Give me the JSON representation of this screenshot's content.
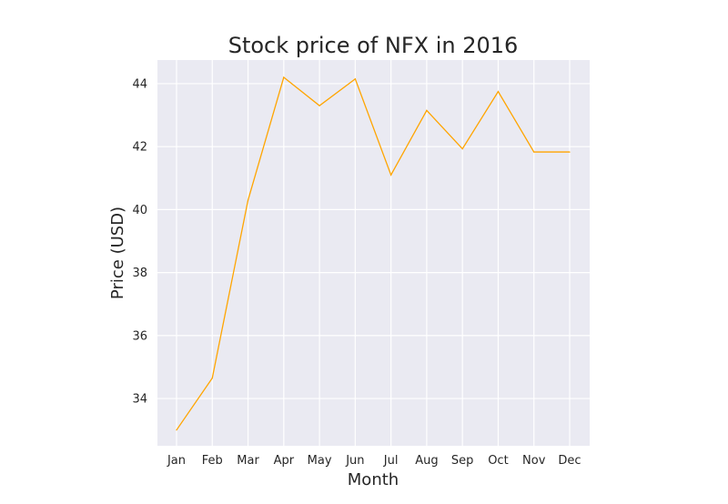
{
  "chart_data": {
    "type": "line",
    "title": "Stock price of NFX in 2016",
    "xlabel": "Month",
    "ylabel": "Price (USD)",
    "categories": [
      "Jan",
      "Feb",
      "Mar",
      "Apr",
      "May",
      "Jun",
      "Jul",
      "Aug",
      "Sep",
      "Oct",
      "Nov",
      "Dec"
    ],
    "series": [
      {
        "values": [
          33.0,
          34.65,
          40.3,
          44.2,
          43.3,
          44.15,
          41.1,
          43.15,
          41.93,
          43.75,
          41.83,
          41.83
        ],
        "color": "#FFA500"
      }
    ],
    "ylim": [
      32.5,
      44.75
    ],
    "yticks": [
      34,
      36,
      38,
      40,
      42,
      44
    ],
    "grid": true,
    "background_color": "#EAEAF2",
    "grid_color": "#FFFFFF"
  }
}
